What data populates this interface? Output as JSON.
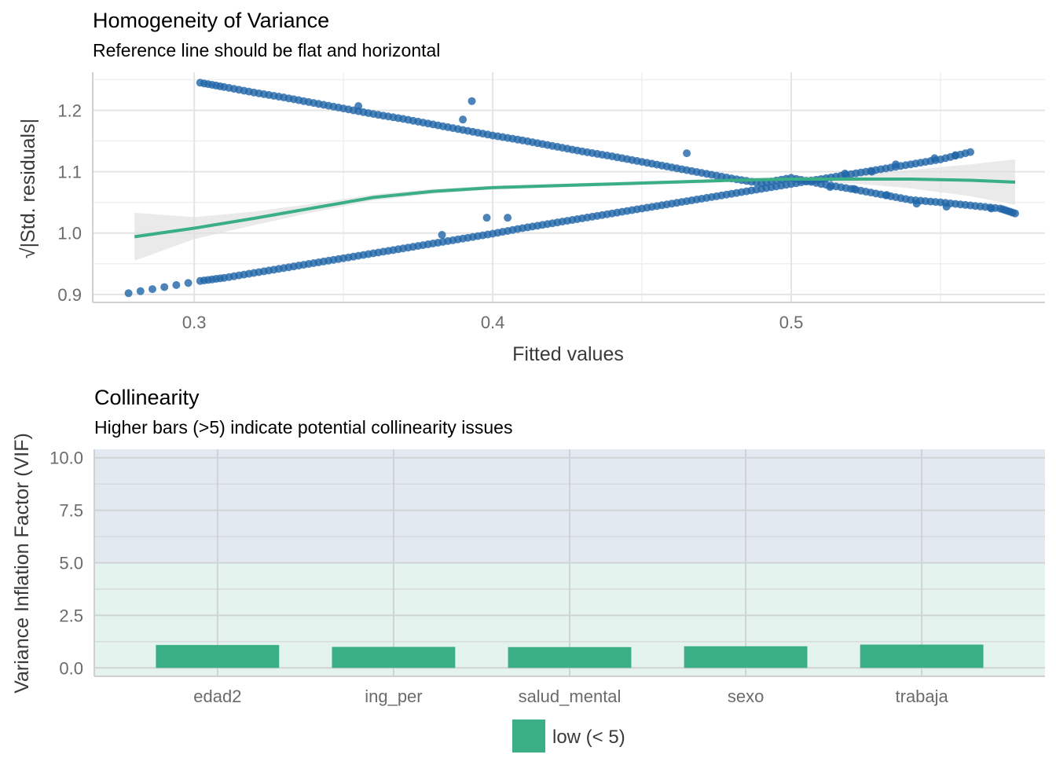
{
  "chart_data": [
    {
      "type": "scatter",
      "title": "Homogeneity of Variance",
      "subtitle": "Reference line should be flat and horizontal",
      "xlabel": "Fitted values",
      "ylabel": "√|Std. residuals|",
      "xlim": [
        0.266,
        0.585
      ],
      "ylim": [
        0.887,
        1.262
      ],
      "xticks": [
        0.3,
        0.4,
        0.5
      ],
      "xtick_labels": [
        "0.3",
        "0.4",
        "0.5"
      ],
      "yticks": [
        0.9,
        1.0,
        1.1,
        1.2
      ],
      "ytick_labels": [
        "0.9",
        "1.0",
        "1.1",
        "1.2"
      ],
      "grid": true,
      "point_color": "#1f65a7",
      "series": [
        {
          "values_x": [
            0.278,
            0.302,
            0.31,
            0.32,
            0.33,
            0.34,
            0.35,
            0.36,
            0.37,
            0.38,
            0.39,
            0.4,
            0.41,
            0.42,
            0.43,
            0.44,
            0.45,
            0.46,
            0.47,
            0.48,
            0.49,
            0.5,
            0.51,
            0.52,
            0.53,
            0.54,
            0.55,
            0.56
          ],
          "values_y": [
            0.902,
            0.922,
            0.927,
            0.935,
            0.943,
            0.951,
            0.959,
            0.967,
            0.975,
            0.983,
            0.991,
            0.999,
            1.008,
            1.016,
            1.024,
            1.032,
            1.04,
            1.048,
            1.056,
            1.064,
            1.072,
            1.08,
            1.088,
            1.096,
            1.104,
            1.112,
            1.12,
            1.132
          ]
        },
        {
          "values_x": [
            0.302,
            0.31,
            0.32,
            0.33,
            0.34,
            0.35,
            0.36,
            0.37,
            0.38,
            0.39,
            0.4,
            0.41,
            0.42,
            0.43,
            0.44,
            0.45,
            0.46,
            0.47,
            0.48,
            0.49,
            0.5,
            0.51,
            0.52,
            0.53,
            0.54,
            0.55,
            0.56,
            0.57,
            0.575
          ],
          "values_y": [
            1.245,
            1.238,
            1.229,
            1.221,
            1.212,
            1.203,
            1.194,
            1.186,
            1.177,
            1.168,
            1.159,
            1.151,
            1.142,
            1.133,
            1.125,
            1.116,
            1.107,
            1.098,
            1.089,
            1.081,
            1.09,
            1.08,
            1.072,
            1.063,
            1.054,
            1.05,
            1.045,
            1.04,
            1.032
          ]
        }
      ],
      "extra_points": [
        {
          "x": 0.398,
          "y": 1.025
        },
        {
          "x": 0.405,
          "y": 1.025
        },
        {
          "x": 0.383,
          "y": 0.997
        },
        {
          "x": 0.393,
          "y": 1.215
        },
        {
          "x": 0.355,
          "y": 1.207
        },
        {
          "x": 0.39,
          "y": 1.185
        },
        {
          "x": 0.465,
          "y": 1.13
        },
        {
          "x": 0.518,
          "y": 1.097
        },
        {
          "x": 0.527,
          "y": 1.1
        },
        {
          "x": 0.535,
          "y": 1.112
        },
        {
          "x": 0.548,
          "y": 1.122
        },
        {
          "x": 0.555,
          "y": 1.127
        },
        {
          "x": 0.521,
          "y": 1.072
        },
        {
          "x": 0.513,
          "y": 1.075
        },
        {
          "x": 0.532,
          "y": 1.062
        },
        {
          "x": 0.542,
          "y": 1.048
        },
        {
          "x": 0.552,
          "y": 1.043
        },
        {
          "x": 0.567,
          "y": 1.04
        }
      ],
      "smooth": {
        "color": "#3aaf85",
        "x": [
          0.28,
          0.3,
          0.32,
          0.34,
          0.36,
          0.38,
          0.4,
          0.42,
          0.44,
          0.46,
          0.48,
          0.5,
          0.52,
          0.54,
          0.56,
          0.575
        ],
        "y": [
          0.994,
          1.008,
          1.024,
          1.041,
          1.058,
          1.068,
          1.074,
          1.077,
          1.08,
          1.083,
          1.086,
          1.088,
          1.088,
          1.088,
          1.086,
          1.083
        ],
        "ymin": [
          0.955,
          0.99,
          1.013,
          1.034,
          1.053,
          1.064,
          1.071,
          1.074,
          1.077,
          1.08,
          1.083,
          1.084,
          1.081,
          1.073,
          1.06,
          1.046
        ],
        "ymax": [
          1.033,
          1.026,
          1.035,
          1.048,
          1.063,
          1.072,
          1.077,
          1.08,
          1.083,
          1.086,
          1.089,
          1.092,
          1.095,
          1.103,
          1.112,
          1.12
        ]
      }
    },
    {
      "type": "bar",
      "title": "Collinearity",
      "subtitle": "Higher bars (>5) indicate potential collinearity issues",
      "xlabel": "",
      "ylabel": "Variance Inflation Factor (VIF)",
      "categories": [
        "edad2",
        "ing_per",
        "salud_mental",
        "sexo",
        "trabaja"
      ],
      "values": [
        1.09,
        1.0,
        0.99,
        1.03,
        1.11
      ],
      "ylim": [
        -0.4,
        10.4
      ],
      "yticks": [
        0,
        2.5,
        5,
        7.5,
        10
      ],
      "ytick_labels": [
        "0.0",
        "2.5",
        "5.0",
        "7.5",
        "10.0"
      ],
      "bands": [
        {
          "from": 0,
          "to": 5,
          "color": "#e5f3ee"
        },
        {
          "from": 5,
          "to": 10.4,
          "color": "#e3e9f0"
        }
      ],
      "bar_color": "#3aaf85",
      "legend": {
        "placement": "bottom",
        "items": [
          {
            "label": "low (< 5)",
            "color": "#3aaf85"
          }
        ]
      }
    }
  ]
}
